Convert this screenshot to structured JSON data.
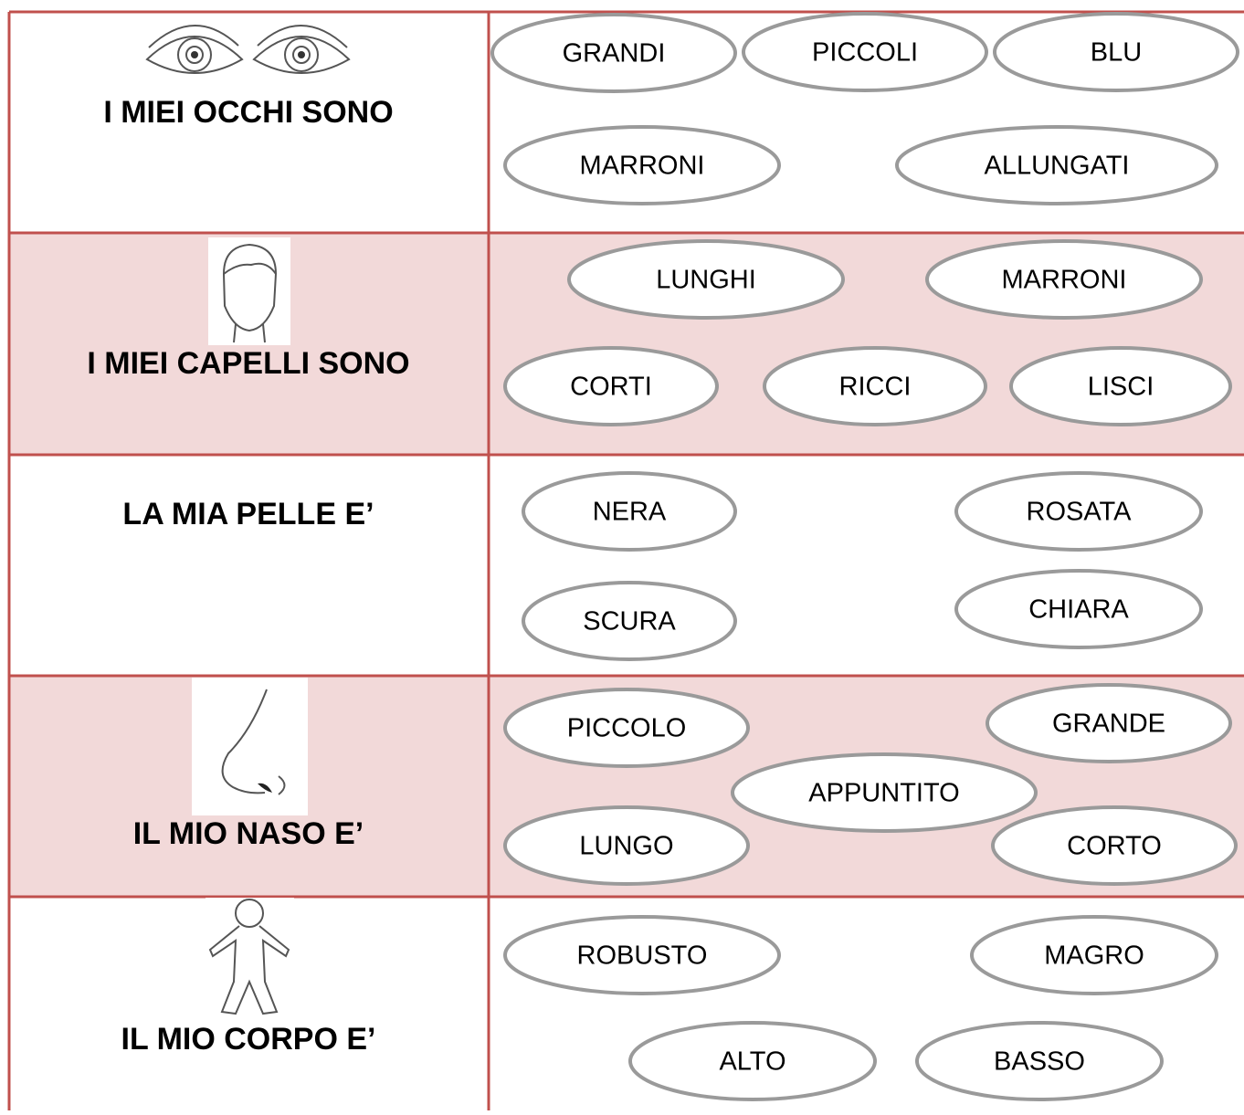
{
  "rows": [
    {
      "label": "I MIEI OCCHI SONO",
      "words": [
        "GRANDI",
        "PICCOLI",
        "BLU",
        "MARRONI",
        "ALLUNGATI"
      ]
    },
    {
      "label": "I MIEI CAPELLI SONO",
      "words": [
        "LUNGHI",
        "MARRONI",
        "CORTI",
        "RICCI",
        "LISCI"
      ]
    },
    {
      "label": "LA MIA PELLE E’",
      "words": [
        "NERA",
        "ROSATA",
        "SCURA",
        "CHIARA"
      ]
    },
    {
      "label": "IL MIO NASO E’",
      "words": [
        "PICCOLO",
        "GRANDE",
        "APPUNTITO",
        "LUNGO",
        "CORTO"
      ]
    },
    {
      "label": "IL MIO CORPO E’",
      "words": [
        "ROBUSTO",
        "MAGRO",
        "ALTO",
        "BASSO"
      ]
    }
  ]
}
